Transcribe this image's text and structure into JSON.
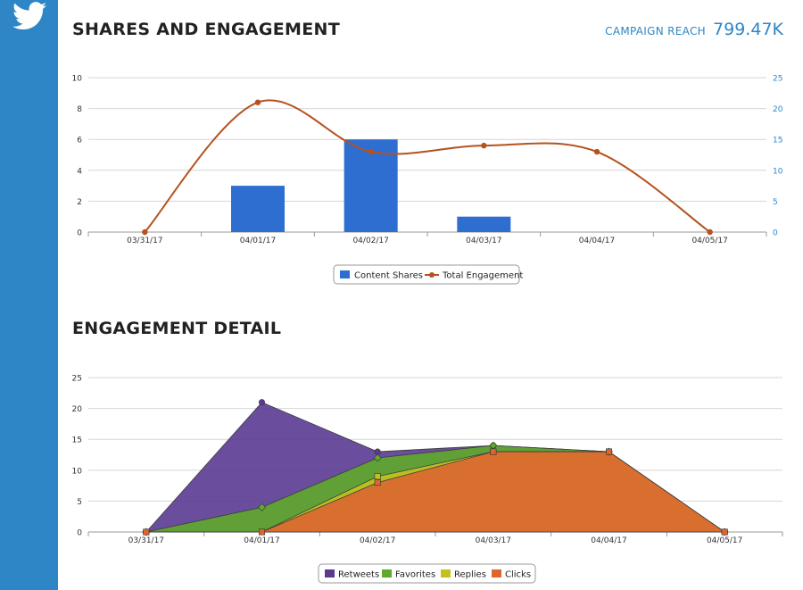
{
  "sidebar": {
    "icon": "twitter-bird-icon"
  },
  "header": {
    "title": "SHARES AND ENGAGEMENT",
    "reach_label": "CAMPAIGN REACH",
    "reach_value": "799.47K"
  },
  "section2": {
    "title": "ENGAGEMENT DETAIL"
  },
  "colors": {
    "sidebar": "#2e86c6",
    "content_shares": "#2d6ed0",
    "total_engagement": "#b5521f",
    "retweets": "#5a3a91",
    "favorites": "#5faa2c",
    "replies": "#c2c21f",
    "clicks": "#dd6630"
  },
  "chart_data": [
    {
      "type": "bar",
      "categories": [
        "03/31/17",
        "04/01/17",
        "04/02/17",
        "04/03/17",
        "04/04/17",
        "04/05/17"
      ],
      "series": [
        {
          "name": "Content Shares",
          "type": "bar",
          "axis": "left",
          "values": [
            0,
            3,
            6,
            1,
            0,
            0
          ]
        },
        {
          "name": "Total Engagement",
          "type": "line",
          "axis": "right",
          "values": [
            0,
            21,
            13,
            14,
            13,
            0
          ]
        }
      ],
      "ylim_left": [
        0,
        10
      ],
      "ylim_right": [
        0,
        25
      ],
      "yticks_left": [
        "0",
        "2",
        "4",
        "6",
        "8",
        "10"
      ],
      "yticks_right": [
        "0",
        "5",
        "10",
        "15",
        "20",
        "25"
      ],
      "grid": true,
      "legend": "bottom-center"
    },
    {
      "type": "area",
      "categories": [
        "03/31/17",
        "04/01/17",
        "04/02/17",
        "04/03/17",
        "04/04/17",
        "04/05/17"
      ],
      "series": [
        {
          "name": "Retweets",
          "values": [
            0,
            21,
            13,
            14,
            13,
            0
          ]
        },
        {
          "name": "Favorites",
          "values": [
            0,
            4,
            12,
            14,
            13,
            0
          ]
        },
        {
          "name": "Replies",
          "values": [
            0,
            0,
            9,
            13,
            13,
            0
          ]
        },
        {
          "name": "Clicks",
          "values": [
            0,
            0,
            8,
            13,
            13,
            0
          ]
        }
      ],
      "ylim": [
        0,
        25
      ],
      "yticks": [
        "0",
        "5",
        "10",
        "15",
        "20",
        "25"
      ],
      "grid": true,
      "legend": "bottom-center"
    }
  ]
}
